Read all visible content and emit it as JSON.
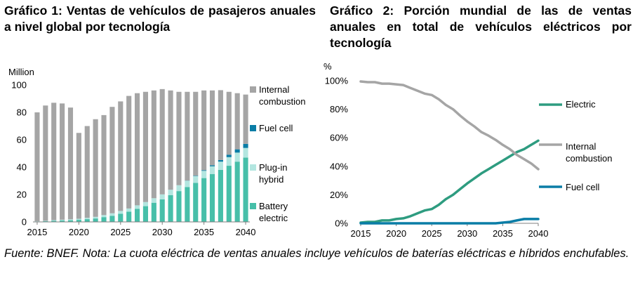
{
  "chart1_title": "Gráfico 1: Ventas de vehículos de pasajeros anuales a nivel global por tecnología",
  "chart2_title": "Gráfico 2: Porción mundial de las de ventas anuales en total de vehículos eléctricos por tecnología",
  "caption": "Fuente: BNEF. Nota: La cuota eléctrica de ventas anuales incluye vehículos de baterías eléctricas e híbridos enchufables.",
  "colors": {
    "internal_combustion_bar": "#a5a5a5",
    "fuel_cell_bar": "#0a7da6",
    "plugin_hybrid_bar": "#b3e6e0",
    "battery_electric_bar": "#47bfa9",
    "electric_line": "#2e9c80",
    "internal_combustion_line": "#a5a5a5",
    "fuel_cell_line": "#0a7da6"
  },
  "chart_data": [
    {
      "type": "bar",
      "stacked": true,
      "title": "Gráfico 1: Ventas de vehículos de pasajeros anuales a nivel global por tecnología",
      "ylabel": "Million",
      "ylim": [
        0,
        100
      ],
      "yticks": [
        "0",
        "20",
        "40",
        "60",
        "80",
        "100"
      ],
      "xticks": [
        "2015",
        "2020",
        "2025",
        "2030",
        "2035",
        "2040"
      ],
      "categories": [
        2015,
        2016,
        2017,
        2018,
        2019,
        2020,
        2021,
        2022,
        2023,
        2024,
        2025,
        2026,
        2027,
        2028,
        2029,
        2030,
        2031,
        2032,
        2033,
        2034,
        2035,
        2036,
        2037,
        2038,
        2039,
        2040
      ],
      "series": [
        {
          "name": "Battery electric",
          "legend": "Battery electric",
          "values": [
            0.3,
            0.5,
            0.8,
            1.0,
            1.2,
            1.5,
            2.0,
            2.5,
            3.5,
            4.5,
            6,
            7.5,
            9.5,
            11.5,
            14,
            16.5,
            19.5,
            22.5,
            25.5,
            28.5,
            32,
            35,
            38,
            41,
            44,
            47
          ]
        },
        {
          "name": "Plug-in hybrid",
          "legend": "Plug-in hybrid",
          "values": [
            0.2,
            0.3,
            0.5,
            0.6,
            0.7,
            0.8,
            1.0,
            1.2,
            1.5,
            1.8,
            2.0,
            2.3,
            2.6,
            3.0,
            3.3,
            3.6,
            4.0,
            4.3,
            4.6,
            5.0,
            5.3,
            5.6,
            6.0,
            6.3,
            6.6,
            7.0
          ]
        },
        {
          "name": "Fuel cell",
          "legend": "Fuel cell",
          "values": [
            0,
            0,
            0,
            0,
            0,
            0,
            0,
            0,
            0,
            0,
            0,
            0,
            0,
            0,
            0,
            0,
            0,
            0,
            0.1,
            0.3,
            0.5,
            0.8,
            1.2,
            1.8,
            2.4,
            3.0
          ]
        },
        {
          "name": "Internal combustion",
          "legend": "Internal combustion",
          "values": [
            79.5,
            84.2,
            85.7,
            84.9,
            81.6,
            62.7,
            67.0,
            71.3,
            73.0,
            77.7,
            80.0,
            82.2,
            81.9,
            80.5,
            78.7,
            76.9,
            72.5,
            68.2,
            64.8,
            61.2,
            58.2,
            54.6,
            51.0,
            45.9,
            41.0,
            36.0
          ]
        }
      ]
    },
    {
      "type": "line",
      "title": "Gráfico 2: Porción mundial de las de ventas anuales en total de vehículos eléctricos por tecnología",
      "ylabel": "%",
      "ylim": [
        0,
        100
      ],
      "yticks": [
        "0%",
        "20%",
        "40%",
        "60%",
        "80%",
        "100%"
      ],
      "xticks": [
        "2015",
        "2020",
        "2025",
        "2030",
        "2035",
        "2040"
      ],
      "x": [
        2015,
        2016,
        2017,
        2018,
        2019,
        2020,
        2021,
        2022,
        2023,
        2024,
        2025,
        2026,
        2027,
        2028,
        2029,
        2030,
        2031,
        2032,
        2033,
        2034,
        2035,
        2036,
        2037,
        2038,
        2039,
        2040
      ],
      "series": [
        {
          "name": "Electric",
          "legend": "Electric",
          "values": [
            0.5,
            1,
            1,
            2,
            2,
            3,
            3.5,
            5,
            7,
            9,
            10,
            13,
            17,
            20,
            24,
            28,
            31.5,
            35,
            38,
            41,
            44,
            47,
            50,
            52,
            55,
            58
          ]
        },
        {
          "name": "Internal combustion",
          "legend": "Internal combustion",
          "values": [
            99.5,
            99,
            99,
            98,
            98,
            97.5,
            97,
            95,
            93,
            91,
            90,
            87,
            83,
            80,
            75.5,
            71.5,
            68,
            64,
            61.5,
            58.5,
            55,
            52,
            48,
            45,
            42,
            38
          ]
        },
        {
          "name": "Fuel cell",
          "legend": "Fuel cell",
          "values": [
            0,
            0,
            0,
            0,
            0,
            0,
            0,
            0,
            0,
            0,
            0,
            0,
            0,
            0,
            0,
            0,
            0,
            0,
            0,
            0,
            0.5,
            1,
            2,
            3,
            3,
            3
          ]
        }
      ]
    }
  ]
}
